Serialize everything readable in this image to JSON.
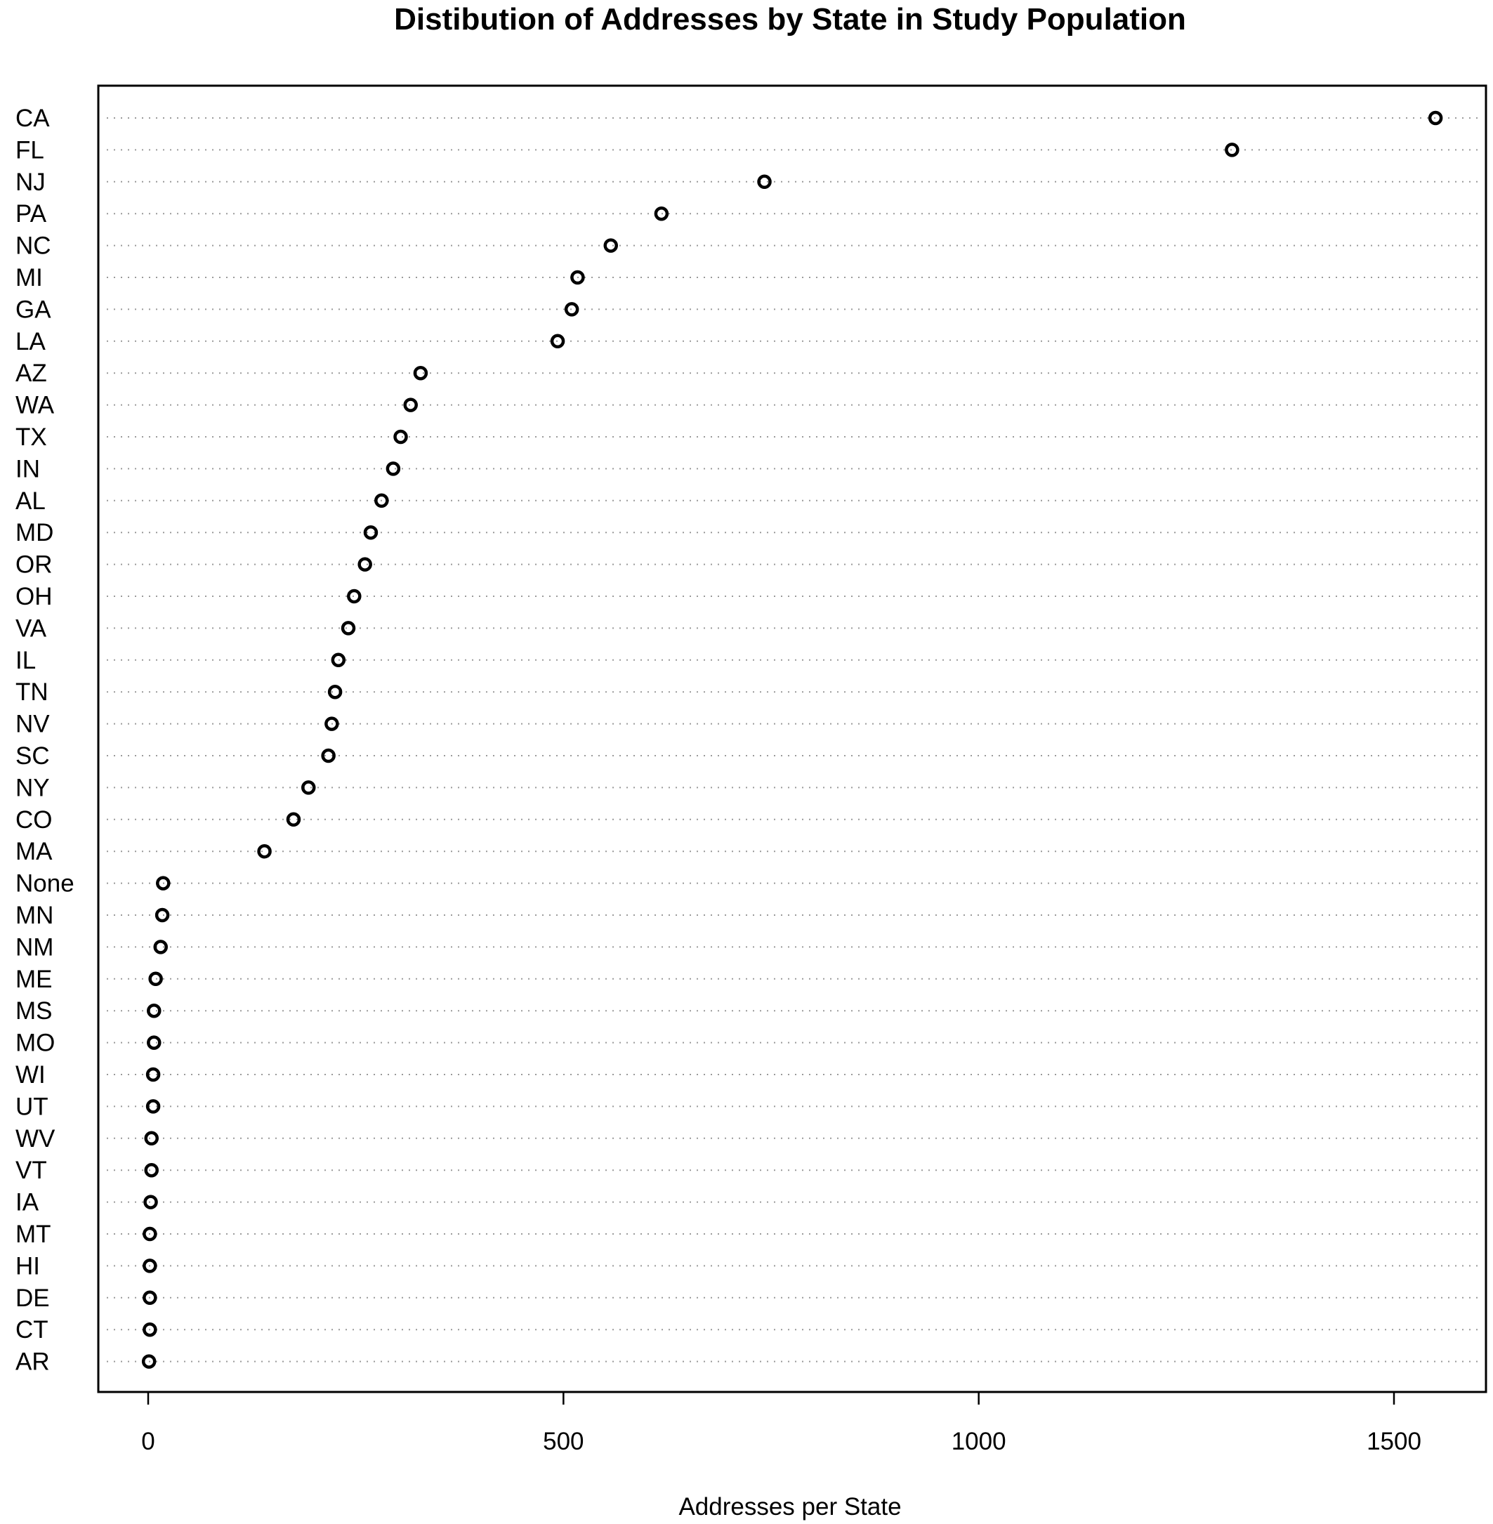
{
  "chart_data": {
    "type": "scatter",
    "subtype": "dotchart",
    "title": "Distibution of Addresses by State in Study Population",
    "xlabel": "Addresses per State",
    "ylabel": "",
    "xlim": [
      -60,
      1600
    ],
    "xticks": [
      0,
      500,
      1000,
      1500
    ],
    "grid": "dotted horizontal guide lines",
    "legend": "none",
    "marker": "open circle",
    "categories": [
      "CA",
      "FL",
      "NJ",
      "PA",
      "NC",
      "MI",
      "GA",
      "LA",
      "AZ",
      "WA",
      "TX",
      "IN",
      "AL",
      "MD",
      "OR",
      "OH",
      "VA",
      "IL",
      "TN",
      "NV",
      "SC",
      "NY",
      "CO",
      "MA",
      "None",
      "MN",
      "NM",
      "ME",
      "MS",
      "MO",
      "WI",
      "UT",
      "WV",
      "VT",
      "IA",
      "MT",
      "HI",
      "DE",
      "CT",
      "AR"
    ],
    "values": [
      1550,
      1305,
      742,
      618,
      557,
      517,
      510,
      493,
      328,
      316,
      304,
      295,
      281,
      268,
      261,
      248,
      241,
      229,
      225,
      221,
      217,
      193,
      175,
      140,
      18,
      17,
      15,
      9,
      7,
      7,
      6,
      6,
      4,
      4,
      3,
      2,
      2,
      2,
      2,
      1
    ]
  }
}
